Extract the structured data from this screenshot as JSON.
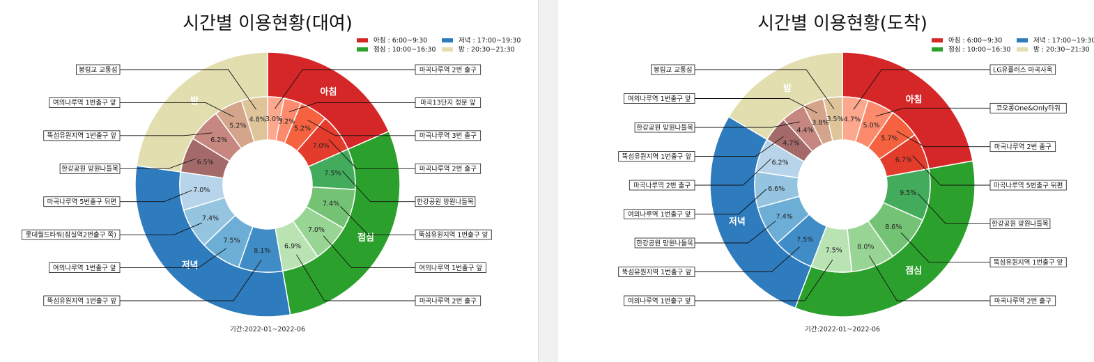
{
  "legend_labels": [
    "아침 : 6:00~9:30",
    "점심 : 10:00~16:30",
    "저녁 : 17:00~19:30",
    "밤 : 20:30~21:30"
  ],
  "colors": {
    "group": [
      "#d62728",
      "#2ca02c",
      "#2e7bbd",
      "#e3deb0"
    ],
    "inner": [
      [
        "#fca88e",
        "#fb8b6c",
        "#f6623f",
        "#e33b2c"
      ],
      [
        "#43ac5c",
        "#74c375",
        "#98d594",
        "#bae3b3"
      ],
      [
        "#3f8cc6",
        "#6caed6",
        "#94c4df",
        "#b7d4ea"
      ],
      [
        "#a46a6a",
        "#c5877f",
        "#d4a58b",
        "#dfc49a"
      ]
    ]
  },
  "chart_data": [
    {
      "type": "pie",
      "title": "시간별 이용현황(대여)",
      "footnote": "기간:2022-01~2022-06",
      "groups": [
        {
          "name": "아침",
          "value": 18.4,
          "label": "아침"
        },
        {
          "name": "점심",
          "value": 28.8,
          "label": "점심"
        },
        {
          "name": "저녁",
          "value": 30.0,
          "label": "저녁"
        },
        {
          "name": "밤",
          "value": 22.7,
          "label": "밤"
        }
      ],
      "inner": [
        {
          "group": 0,
          "value": 3.0,
          "label": "3.0%",
          "station": "마곡나루역 2번 출구"
        },
        {
          "group": 0,
          "value": 3.2,
          "label": "3.2%",
          "station": "마곡13단지 정문 앞"
        },
        {
          "group": 0,
          "value": 5.2,
          "label": "5.2%",
          "station": "마곡나루역 3번 출구"
        },
        {
          "group": 0,
          "value": 7.0,
          "label": "7.0%",
          "station": "마곡나루역 2번 출구"
        },
        {
          "group": 1,
          "value": 7.5,
          "label": "7.5%",
          "station": "한강공원 망원나들목"
        },
        {
          "group": 1,
          "value": 7.4,
          "label": "7.4%",
          "station": "뚝섬유원지역 1번출구 앞"
        },
        {
          "group": 1,
          "value": 7.0,
          "label": "7.0%",
          "station": "여의나루역 1번출구 앞"
        },
        {
          "group": 1,
          "value": 6.9,
          "label": "6.9%",
          "station": "마곡나루역 2번 출구"
        },
        {
          "group": 2,
          "value": 8.1,
          "label": "8.1%",
          "station": "뚝섬유원지역 1번출구 앞"
        },
        {
          "group": 2,
          "value": 7.5,
          "label": "7.5%",
          "station": "여의나루역 1번출구 앞"
        },
        {
          "group": 2,
          "value": 7.4,
          "label": "7.4%",
          "station": "롯데월드타워(잠실역2번출구 쪽)"
        },
        {
          "group": 2,
          "value": 7.0,
          "label": "7.0%",
          "station": "마곡나루역 5번출구 뒤편"
        },
        {
          "group": 3,
          "value": 6.5,
          "label": "6.5%",
          "station": "한강공원 망원나들목"
        },
        {
          "group": 3,
          "value": 6.2,
          "label": "6.2%",
          "station": "뚝섬유원지역 1번출구 앞"
        },
        {
          "group": 3,
          "value": 5.2,
          "label": "5.2%",
          "station": "여의나루역 1번출구 앞"
        },
        {
          "group": 3,
          "value": 4.8,
          "label": "4.8%",
          "station": "봉림교 교통섬"
        }
      ]
    },
    {
      "type": "pie",
      "title": "시간별 이용현황(도착)",
      "footnote": "기간:2022-01~2022-06",
      "groups": [
        {
          "name": "아침",
          "value": 22.1,
          "label": "아침"
        },
        {
          "name": "점심",
          "value": 33.6,
          "label": "점심"
        },
        {
          "name": "저녁",
          "value": 27.7,
          "label": "저녁"
        },
        {
          "name": "밤",
          "value": 16.4,
          "label": "밤"
        }
      ],
      "inner": [
        {
          "group": 0,
          "value": 4.7,
          "label": "4.7%",
          "station": "LG유플러스 마곡사옥"
        },
        {
          "group": 0,
          "value": 5.0,
          "label": "5.0%",
          "station": "코오롱One&Only타워"
        },
        {
          "group": 0,
          "value": 5.7,
          "label": "5.7%",
          "station": "마곡나루역 2번 출구"
        },
        {
          "group": 0,
          "value": 6.7,
          "label": "6.7%",
          "station": "마곡나루역 5번출구 뒤편"
        },
        {
          "group": 1,
          "value": 9.5,
          "label": "9.5%",
          "station": "한강공원 망원나들목"
        },
        {
          "group": 1,
          "value": 8.6,
          "label": "8.6%",
          "station": "뚝섬유원지역 1번출구 앞"
        },
        {
          "group": 1,
          "value": 8.0,
          "label": "8.0%",
          "station": "마곡나루역 2번 출구"
        },
        {
          "group": 1,
          "value": 7.5,
          "label": "7.5%",
          "station": "여의나루역 1번출구 앞"
        },
        {
          "group": 2,
          "value": 7.5,
          "label": "7.5%",
          "station": "뚝섬유원지역 1번출구 앞"
        },
        {
          "group": 2,
          "value": 7.4,
          "label": "7.4%",
          "station": "한강공원 망원나들목"
        },
        {
          "group": 2,
          "value": 6.6,
          "label": "6.6%",
          "station": "여의나루역 1번출구 앞"
        },
        {
          "group": 2,
          "value": 6.2,
          "label": "6.2%",
          "station": "마곡나루역 2번 출구"
        },
        {
          "group": 3,
          "value": 4.7,
          "label": "4.7%",
          "station": "뚝섬유원지역 1번출구 앞"
        },
        {
          "group": 3,
          "value": 4.4,
          "label": "4.4%",
          "station": "한강공원 망원나들목"
        },
        {
          "group": 3,
          "value": 3.8,
          "label": "3.8%",
          "station": "여의나루역 1번출구 앞"
        },
        {
          "group": 3,
          "value": 3.5,
          "label": "3.5%",
          "station": "봉림교 교통섬"
        }
      ]
    }
  ]
}
